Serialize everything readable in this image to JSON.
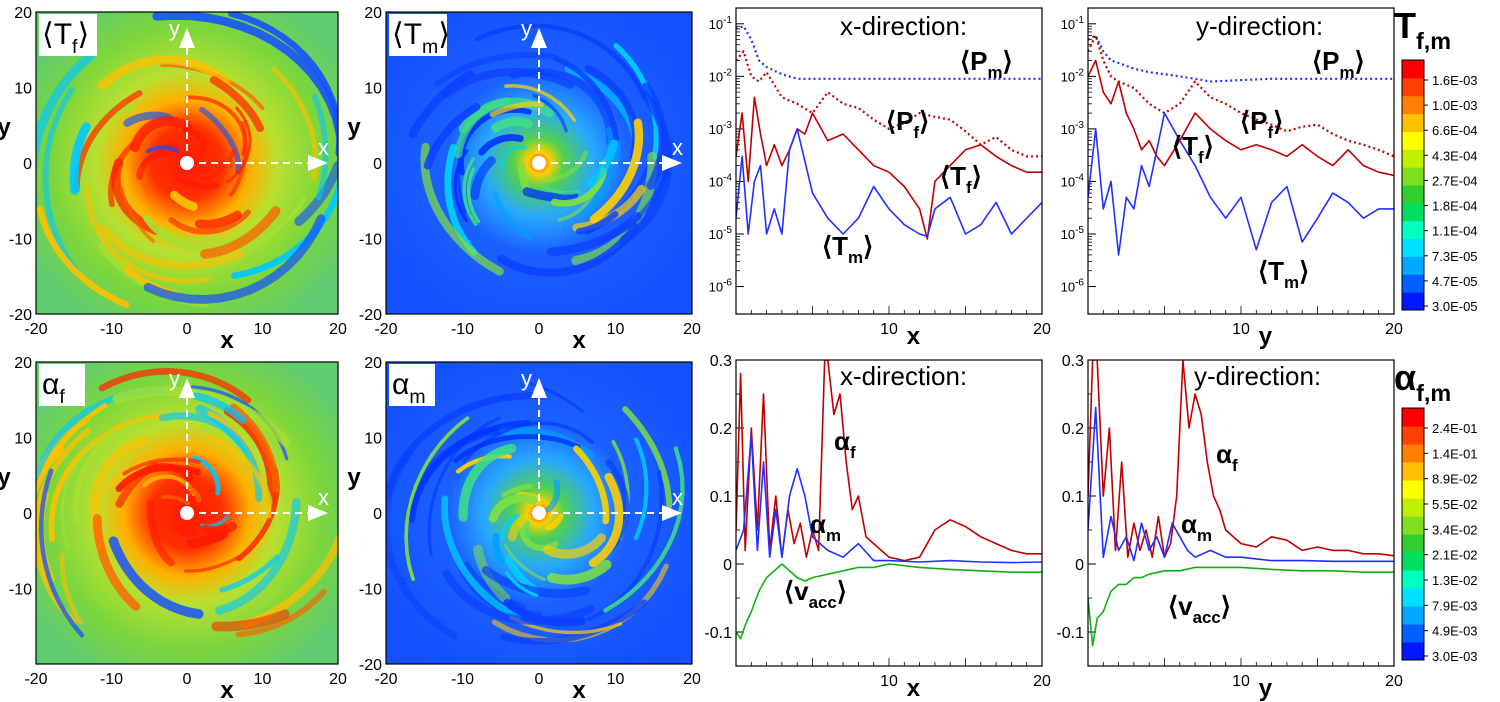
{
  "colors": {
    "red": "#c00000",
    "blue": "#2030ff",
    "green": "#10b010",
    "field_green": "#7cd63c",
    "field_blue": "#1450ff",
    "field_red": "#ff1a00"
  },
  "contour_panels": [
    {
      "label_main": "⟨T",
      "label_sub": "f",
      "label_close": "⟩",
      "theme": "warm",
      "xlabel": "x",
      "ylabel": "y",
      "xticks": [
        "-20",
        "-10",
        "0",
        "10",
        "20"
      ],
      "yticks": [
        "20",
        "10",
        "0",
        "-10",
        "-20"
      ],
      "arrow_x": "x",
      "arrow_y": "y"
    },
    {
      "label_main": "⟨T",
      "label_sub": "m",
      "label_close": "⟩",
      "theme": "cool",
      "xlabel": "x",
      "ylabel": "y",
      "xticks": [
        "-20",
        "-10",
        "0",
        "10",
        "20"
      ],
      "yticks": [
        "20",
        "10",
        "0",
        "-10",
        "-20"
      ],
      "arrow_x": "x",
      "arrow_y": "y"
    },
    {
      "label_main": "α",
      "label_sub": "f",
      "label_close": "",
      "theme": "warm",
      "xlabel": "x",
      "ylabel": "y",
      "xticks": [
        "-20",
        "-10",
        "0",
        "10",
        "20"
      ],
      "yticks": [
        "20",
        "10",
        "0",
        "-10"
      ],
      "arrow_x": "x",
      "arrow_y": "y"
    },
    {
      "label_main": "α",
      "label_sub": "m",
      "label_close": "",
      "theme": "cool",
      "xlabel": "x",
      "ylabel": "y",
      "xticks": [
        "-20",
        "-10",
        "0",
        "10",
        "20"
      ],
      "yticks": [
        "20",
        "10",
        "0",
        "-10",
        "-20"
      ],
      "arrow_x": "x",
      "arrow_y": "y"
    }
  ],
  "colorbars": [
    {
      "title_main": "T",
      "title_sub": "f,m",
      "labels": [
        "1.6E-03",
        "1.0E-03",
        "6.6E-04",
        "4.3E-04",
        "2.7E-04",
        "1.8E-04",
        "1.1E-04",
        "7.3E-05",
        "4.7E-05",
        "3.0E-05"
      ]
    },
    {
      "title_main": "α",
      "title_sub": "f,m",
      "labels": [
        "2.4E-01",
        "1.4E-01",
        "8.9E-02",
        "5.5E-02",
        "3.4E-02",
        "2.1E-02",
        "1.3E-02",
        "7.9E-03",
        "4.9E-03",
        "3.0E-03"
      ]
    }
  ],
  "chart_data": [
    {
      "type": "line",
      "title": "x-direction:",
      "xlabel": "x",
      "yscale": "log",
      "xlim": [
        0,
        20
      ],
      "ylim": [
        3e-07,
        0.2
      ],
      "xticks": [
        "10",
        "20"
      ],
      "yticks": [
        "10^-1",
        "10^-2",
        "10^-3",
        "10^-4",
        "10^-5",
        "10^-6"
      ],
      "series": [
        {
          "name": "Pm",
          "label_main": "⟨P",
          "label_sub": "m",
          "label_close": "⟩",
          "color": "blue",
          "dash": "dotted",
          "x": [
            0,
            0.5,
            1,
            1.5,
            2,
            3,
            4,
            5,
            6,
            8,
            10,
            12,
            14,
            16,
            18,
            20
          ],
          "y": [
            0.08,
            0.09,
            0.05,
            0.02,
            0.015,
            0.011,
            0.009,
            0.009,
            0.009,
            0.009,
            0.009,
            0.009,
            0.009,
            0.009,
            0.009,
            0.009
          ]
        },
        {
          "name": "Pf",
          "label_main": "⟨P",
          "label_sub": "f",
          "label_close": "⟩",
          "color": "red",
          "dash": "dotted",
          "x": [
            0,
            0.5,
            1,
            1.5,
            2,
            3,
            4,
            5,
            6,
            7,
            8,
            9,
            10,
            11,
            12,
            13,
            14,
            15,
            16,
            17,
            18,
            19,
            20
          ],
          "y": [
            0.02,
            0.03,
            0.01,
            0.008,
            0.012,
            0.004,
            0.003,
            0.002,
            0.005,
            0.003,
            0.0025,
            0.0015,
            0.001,
            0.0013,
            0.002,
            0.0017,
            0.0015,
            0.0009,
            0.0005,
            0.0007,
            0.0004,
            0.0003,
            0.0003
          ]
        },
        {
          "name": "Tf",
          "label_main": "⟨T",
          "label_sub": "f",
          "label_close": "⟩",
          "color": "red",
          "dash": "solid",
          "x": [
            0,
            0.4,
            0.8,
            1.2,
            1.6,
            2,
            2.5,
            3,
            3.5,
            4,
            4.5,
            5,
            6,
            7,
            8,
            9,
            10,
            11,
            12,
            12.5,
            13,
            14,
            15,
            16,
            17,
            18,
            19,
            20
          ],
          "y": [
            0.0003,
            0.002,
            0.0001,
            0.004,
            0.0008,
            0.0002,
            0.0005,
            0.0002,
            0.0004,
            0.001,
            0.0008,
            0.002,
            0.0006,
            0.0008,
            0.0004,
            0.0002,
            0.00015,
            8e-05,
            3e-05,
            8e-06,
            0.0001,
            0.0002,
            0.0004,
            0.0005,
            0.0003,
            0.0002,
            0.00015,
            0.00015
          ]
        },
        {
          "name": "Tm",
          "label_main": "⟨T",
          "label_sub": "m",
          "label_close": "⟩",
          "color": "blue",
          "dash": "solid",
          "x": [
            0,
            0.4,
            0.8,
            1.2,
            1.6,
            2,
            2.5,
            3,
            3.5,
            4,
            5,
            6,
            7,
            8,
            9,
            10,
            11,
            12,
            12.5,
            13,
            14,
            15,
            16,
            17,
            18,
            19,
            20
          ],
          "y": [
            2e-05,
            0.0003,
            1e-05,
            0.0001,
            0.0002,
            1e-05,
            3e-05,
            1e-05,
            0.0004,
            0.001,
            6e-05,
            2e-05,
            1e-05,
            2e-05,
            8e-05,
            3e-05,
            1.5e-05,
            1e-05,
            9e-06,
            3e-05,
            5e-05,
            1e-05,
            1.5e-05,
            4e-05,
            1e-05,
            2e-05,
            4e-05
          ]
        }
      ]
    },
    {
      "type": "line",
      "title": "y-direction:",
      "xlabel": "y",
      "yscale": "log",
      "xlim": [
        0,
        20
      ],
      "ylim": [
        3e-07,
        0.2
      ],
      "xticks": [
        "10",
        "20"
      ],
      "yticks": [
        "10^-1",
        "10^-2",
        "10^-3",
        "10^-4",
        "10^-5",
        "10^-6"
      ],
      "series": [
        {
          "name": "Pm",
          "label_main": "⟨P",
          "label_sub": "m",
          "label_close": "⟩",
          "color": "blue",
          "dash": "dotted",
          "x": [
            0,
            0.5,
            1,
            1.5,
            2,
            3,
            4,
            5,
            6,
            7,
            8,
            10,
            12,
            14,
            16,
            18,
            20
          ],
          "y": [
            0.05,
            0.06,
            0.03,
            0.02,
            0.018,
            0.014,
            0.012,
            0.011,
            0.01,
            0.009,
            0.008,
            0.0085,
            0.009,
            0.009,
            0.009,
            0.009,
            0.009
          ]
        },
        {
          "name": "Pf",
          "label_main": "⟨P",
          "label_sub": "f",
          "label_close": "⟩",
          "color": "red",
          "dash": "dotted",
          "x": [
            0,
            0.5,
            1,
            1.5,
            2,
            3,
            4,
            5,
            6,
            7,
            8,
            9,
            10,
            11,
            12,
            13,
            14,
            15,
            16,
            17,
            18,
            19,
            20
          ],
          "y": [
            0.03,
            0.06,
            0.02,
            0.01,
            0.008,
            0.006,
            0.003,
            0.002,
            0.003,
            0.008,
            0.004,
            0.003,
            0.002,
            0.0015,
            0.0012,
            0.0009,
            0.0011,
            0.0012,
            0.0008,
            0.0006,
            0.0005,
            0.0004,
            0.0003
          ]
        },
        {
          "name": "Tf",
          "label_main": "⟨T",
          "label_sub": "f",
          "label_close": "⟩",
          "color": "red",
          "dash": "solid",
          "x": [
            0,
            0.5,
            1,
            1.5,
            2,
            2.5,
            3,
            3.5,
            4,
            4.5,
            5,
            6,
            7,
            8,
            9,
            10,
            11,
            12,
            13,
            14,
            15,
            16,
            17,
            18,
            19,
            20
          ],
          "y": [
            0.01,
            0.02,
            0.005,
            0.003,
            0.008,
            0.002,
            0.001,
            0.0004,
            0.0006,
            0.0003,
            0.0002,
            0.0006,
            0.002,
            0.001,
            0.0006,
            0.0004,
            0.0005,
            0.0004,
            0.0003,
            0.0005,
            0.0003,
            0.0002,
            0.0004,
            0.0002,
            0.00015,
            0.00013
          ]
        },
        {
          "name": "Tm",
          "label_main": "⟨T",
          "label_sub": "m",
          "label_close": "⟩",
          "color": "blue",
          "dash": "solid",
          "x": [
            0,
            0.5,
            1,
            1.5,
            2,
            2.5,
            3,
            3.5,
            4,
            5,
            6,
            7,
            8,
            9,
            10,
            11,
            12,
            13,
            14,
            15,
            16,
            17,
            18,
            19,
            20
          ],
          "y": [
            5e-05,
            0.001,
            3e-05,
            0.0001,
            4e-06,
            5e-05,
            3e-05,
            0.0002,
            8e-05,
            0.002,
            0.0006,
            0.0002,
            5e-05,
            2e-05,
            5e-05,
            5e-06,
            4e-05,
            8e-05,
            7e-06,
            2e-05,
            6e-05,
            4e-05,
            2e-05,
            3e-05,
            3e-05
          ]
        }
      ]
    },
    {
      "type": "line",
      "title": "x-direction:",
      "xlabel": "x",
      "yscale": "linear",
      "xlim": [
        0,
        20
      ],
      "ylim": [
        -0.15,
        0.3
      ],
      "xticks": [
        "10",
        "20"
      ],
      "yticks": [
        "0.3",
        "0.2",
        "0.1",
        "0",
        "-0.1"
      ],
      "series": [
        {
          "name": "alpha_f",
          "label_main": "α",
          "label_sub": "f",
          "label_close": "",
          "color": "red",
          "dash": "solid",
          "x": [
            0,
            0.3,
            0.6,
            1,
            1.4,
            1.8,
            2.2,
            2.6,
            3,
            3.4,
            3.8,
            4.2,
            4.6,
            5,
            5.4,
            5.8,
            6,
            6.4,
            6.8,
            7.2,
            7.6,
            8,
            8.5,
            9,
            10,
            11,
            12,
            13,
            14,
            15,
            16,
            17,
            18,
            19,
            20
          ],
          "y": [
            0.05,
            0.28,
            0.02,
            0.2,
            0.05,
            0.25,
            0.02,
            0.1,
            0.01,
            0.08,
            0.03,
            0.06,
            0.01,
            0.05,
            0.02,
            0.3,
            0.3,
            0.22,
            0.25,
            0.15,
            0.08,
            0.1,
            0.04,
            0.03,
            0.01,
            0.005,
            0.01,
            0.05,
            0.065,
            0.055,
            0.04,
            0.03,
            0.02,
            0.015,
            0.015
          ]
        },
        {
          "name": "alpha_m",
          "label_main": "α",
          "label_sub": "m",
          "label_close": "",
          "color": "blue",
          "dash": "solid",
          "x": [
            0,
            0.5,
            1,
            1.4,
            1.8,
            2.2,
            2.6,
            3,
            3.5,
            4,
            4.5,
            5,
            5.5,
            6,
            7,
            8,
            9,
            10,
            12,
            14,
            16,
            18,
            20
          ],
          "y": [
            0.02,
            0.05,
            0.19,
            0.02,
            0.15,
            0.01,
            0.08,
            0.01,
            0.1,
            0.14,
            0.1,
            0.04,
            0.03,
            0.02,
            0.01,
            0.03,
            0.005,
            0.005,
            0.003,
            0.005,
            0.003,
            0.002,
            0.003
          ]
        },
        {
          "name": "v_acc",
          "label_main": "⟨v",
          "label_sub": "acc",
          "label_close": "⟩",
          "color": "green",
          "dash": "solid",
          "x": [
            0,
            0.3,
            0.6,
            1,
            1.5,
            2,
            2.5,
            3,
            3.5,
            4,
            4.5,
            5,
            6,
            7,
            8,
            9,
            10,
            12,
            14,
            16,
            18,
            20
          ],
          "y": [
            -0.1,
            -0.11,
            -0.09,
            -0.07,
            -0.04,
            -0.02,
            -0.01,
            0.0,
            -0.01,
            -0.02,
            -0.025,
            -0.02,
            -0.015,
            -0.01,
            -0.005,
            -0.005,
            0.0,
            -0.005,
            -0.008,
            -0.01,
            -0.012,
            -0.012
          ]
        }
      ]
    },
    {
      "type": "line",
      "title": "y-direction:",
      "xlabel": "y",
      "yscale": "linear",
      "xlim": [
        0,
        20
      ],
      "ylim": [
        -0.15,
        0.3
      ],
      "xticks": [
        "10",
        "20"
      ],
      "yticks": [
        "0.3",
        "0.2",
        "0.1",
        "0",
        "-0.1"
      ],
      "series": [
        {
          "name": "alpha_f",
          "label_main": "α",
          "label_sub": "f",
          "label_close": "",
          "color": "red",
          "dash": "solid",
          "x": [
            0,
            0.3,
            0.6,
            1,
            1.4,
            1.8,
            2.2,
            2.6,
            3,
            3.4,
            3.8,
            4.2,
            4.6,
            5,
            5.4,
            5.8,
            6.2,
            6.6,
            7,
            7.4,
            7.8,
            8.2,
            8.6,
            9,
            10,
            11,
            12,
            13,
            14,
            15,
            16,
            17,
            18,
            19,
            20
          ],
          "y": [
            0.1,
            0.3,
            0.3,
            0.1,
            0.2,
            0.02,
            0.15,
            0.01,
            0.06,
            0.02,
            0.05,
            0.01,
            0.07,
            0.01,
            0.03,
            0.1,
            0.3,
            0.2,
            0.25,
            0.22,
            0.15,
            0.1,
            0.08,
            0.05,
            0.03,
            0.025,
            0.04,
            0.035,
            0.02,
            0.025,
            0.02,
            0.02,
            0.015,
            0.015,
            0.012
          ]
        },
        {
          "name": "alpha_m",
          "label_main": "α",
          "label_sub": "m",
          "label_close": "",
          "color": "blue",
          "dash": "solid",
          "x": [
            0,
            0.5,
            1,
            1.5,
            2,
            2.5,
            3,
            3.5,
            4,
            4.5,
            5,
            5.5,
            6,
            6.5,
            7,
            8,
            9,
            10,
            12,
            14,
            16,
            18,
            20
          ],
          "y": [
            0.05,
            0.23,
            0.01,
            0.07,
            0.02,
            0.04,
            0.005,
            0.06,
            0.02,
            0.04,
            0.01,
            0.06,
            0.04,
            0.02,
            0.01,
            0.02,
            0.01,
            0.01,
            0.005,
            0.005,
            0.004,
            0.004,
            0.004
          ]
        },
        {
          "name": "v_acc",
          "label_main": "⟨v",
          "label_sub": "acc",
          "label_close": "⟩",
          "color": "green",
          "dash": "solid",
          "x": [
            0,
            0.3,
            0.6,
            1,
            1.5,
            2,
            2.5,
            3,
            3.5,
            4,
            5,
            6,
            7,
            8,
            9,
            10,
            12,
            14,
            16,
            18,
            20
          ],
          "y": [
            -0.05,
            -0.12,
            -0.08,
            -0.07,
            -0.04,
            -0.03,
            -0.03,
            -0.02,
            -0.02,
            -0.015,
            -0.01,
            -0.01,
            -0.005,
            -0.005,
            -0.005,
            -0.005,
            -0.008,
            -0.01,
            -0.01,
            -0.012,
            -0.012
          ]
        }
      ]
    }
  ]
}
